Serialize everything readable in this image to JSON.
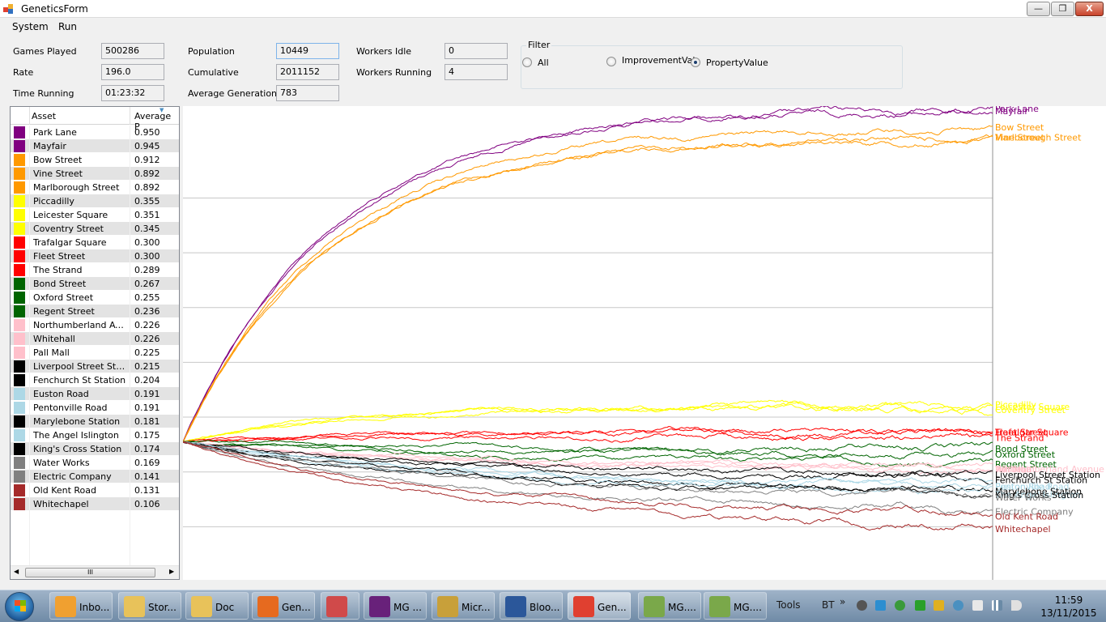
{
  "window": {
    "title": "GeneticsForm",
    "minimize": "—",
    "maximize": "❐",
    "close": "X"
  },
  "menu": {
    "items": [
      "System",
      "Run"
    ]
  },
  "stats": {
    "games_played_label": "Games Played",
    "games_played": "500286",
    "rate_label": "Rate",
    "rate": "196.0",
    "time_running_label": "Time Running",
    "time_running": "01:23:32",
    "population_label": "Population",
    "population": "10449",
    "cumulative_label": "Cumulative",
    "cumulative": "2011152",
    "average_generation_label": "Average Generation",
    "average_generation": "783",
    "workers_idle_label": "Workers Idle",
    "workers_idle": "0",
    "workers_running_label": "Workers Running",
    "workers_running": "4"
  },
  "filter": {
    "legend": "Filter",
    "options": [
      "All",
      "ImprovementVal",
      "PropertyValue"
    ],
    "selected": "PropertyValue"
  },
  "grid": {
    "columns": [
      "Asset",
      "Average P"
    ],
    "scroll_thumb": "III",
    "rows": [
      {
        "name": "Park Lane",
        "value": "0.950",
        "color": "#800080"
      },
      {
        "name": "Mayfair",
        "value": "0.945",
        "color": "#800080"
      },
      {
        "name": "Bow Street",
        "value": "0.912",
        "color": "#ff9900"
      },
      {
        "name": "Vine Street",
        "value": "0.892",
        "color": "#ff9900"
      },
      {
        "name": "Marlborough Street",
        "value": "0.892",
        "color": "#ff9900"
      },
      {
        "name": "Piccadilly",
        "value": "0.355",
        "color": "#ffff00"
      },
      {
        "name": "Leicester Square",
        "value": "0.351",
        "color": "#ffff00"
      },
      {
        "name": "Coventry Street",
        "value": "0.345",
        "color": "#ffff00"
      },
      {
        "name": "Trafalgar Square",
        "value": "0.300",
        "color": "#ff0000"
      },
      {
        "name": "Fleet Street",
        "value": "0.300",
        "color": "#ff0000"
      },
      {
        "name": "The Strand",
        "value": "0.289",
        "color": "#ff0000"
      },
      {
        "name": "Bond Street",
        "value": "0.267",
        "color": "#006400"
      },
      {
        "name": "Oxford Street",
        "value": "0.255",
        "color": "#006400"
      },
      {
        "name": "Regent Street",
        "value": "0.236",
        "color": "#006400"
      },
      {
        "name": "Northumberland Aven...",
        "value": "0.226",
        "color": "#ffc0cb"
      },
      {
        "name": "Whitehall",
        "value": "0.226",
        "color": "#ffc0cb"
      },
      {
        "name": "Pall Mall",
        "value": "0.225",
        "color": "#ffc0cb"
      },
      {
        "name": "Liverpool Street Station",
        "value": "0.215",
        "color": "#000000"
      },
      {
        "name": "Fenchurch St Station",
        "value": "0.204",
        "color": "#000000"
      },
      {
        "name": "Euston Road",
        "value": "0.191",
        "color": "#add8e6"
      },
      {
        "name": "Pentonville Road",
        "value": "0.191",
        "color": "#add8e6"
      },
      {
        "name": "Marylebone Station",
        "value": "0.181",
        "color": "#000000"
      },
      {
        "name": "The Angel Islington",
        "value": "0.175",
        "color": "#add8e6"
      },
      {
        "name": "King's Cross Station",
        "value": "0.174",
        "color": "#000000"
      },
      {
        "name": "Water Works",
        "value": "0.169",
        "color": "#808080"
      },
      {
        "name": "Electric Company",
        "value": "0.141",
        "color": "#808080"
      },
      {
        "name": "Old Kent Road",
        "value": "0.131",
        "color": "#a52a2a"
      },
      {
        "name": "Whitechapel",
        "value": "0.106",
        "color": "#a52a2a"
      }
    ]
  },
  "chart_data": {
    "type": "line",
    "start_value": 0.28,
    "series": [
      {
        "name": "Park Lane",
        "value": 0.95,
        "color": "#800080"
      },
      {
        "name": "Mayfair",
        "value": 0.945,
        "color": "#800080"
      },
      {
        "name": "Bow Street",
        "value": 0.912,
        "color": "#ff9900"
      },
      {
        "name": "Vine Street",
        "value": 0.892,
        "color": "#ff9900"
      },
      {
        "name": "Marlborough Street",
        "value": 0.892,
        "color": "#ff9900"
      },
      {
        "name": "Piccadilly",
        "value": 0.355,
        "color": "#ffff00"
      },
      {
        "name": "Leicester Square",
        "value": 0.351,
        "color": "#ffff00"
      },
      {
        "name": "Coventry Street",
        "value": 0.345,
        "color": "#ffff00"
      },
      {
        "name": "Trafalgar Square",
        "value": 0.3,
        "color": "#ff0000"
      },
      {
        "name": "Fleet Street",
        "value": 0.3,
        "color": "#ff0000"
      },
      {
        "name": "The Strand",
        "value": 0.289,
        "color": "#ff0000"
      },
      {
        "name": "Bond Street",
        "value": 0.267,
        "color": "#006400"
      },
      {
        "name": "Oxford Street",
        "value": 0.255,
        "color": "#006400"
      },
      {
        "name": "Regent Street",
        "value": 0.236,
        "color": "#006400"
      },
      {
        "name": "Northumberland Avenue",
        "value": 0.226,
        "color": "#ffc0cb"
      },
      {
        "name": "Whitehall",
        "value": 0.226,
        "color": "#ffc0cb"
      },
      {
        "name": "Pall Mall",
        "value": 0.225,
        "color": "#ffc0cb"
      },
      {
        "name": "Liverpool Street Station",
        "value": 0.215,
        "color": "#000000"
      },
      {
        "name": "Fenchurch St Station",
        "value": 0.204,
        "color": "#000000"
      },
      {
        "name": "Euston Road",
        "value": 0.191,
        "color": "#add8e6"
      },
      {
        "name": "Pentonville Road",
        "value": 0.191,
        "color": "#add8e6"
      },
      {
        "name": "Marylebone Station",
        "value": 0.181,
        "color": "#000000"
      },
      {
        "name": "The Angel Islington",
        "value": 0.175,
        "color": "#add8e6"
      },
      {
        "name": "King's Cross Station",
        "value": 0.174,
        "color": "#000000"
      },
      {
        "name": "Water Works",
        "value": 0.169,
        "color": "#808080"
      },
      {
        "name": "Electric Company",
        "value": 0.141,
        "color": "#808080"
      },
      {
        "name": "Old Kent Road",
        "value": 0.131,
        "color": "#a52a2a"
      },
      {
        "name": "Whitechapel",
        "value": 0.106,
        "color": "#a52a2a"
      }
    ],
    "ylim": [
      0,
      1.0
    ],
    "grid": true,
    "legend": "right"
  },
  "taskbar": {
    "buttons": [
      {
        "label": "Inbo...",
        "icon": "outlook-icon",
        "color": "#f0a030"
      },
      {
        "label": "Stor...",
        "icon": "folder-icon",
        "color": "#e8c25a"
      },
      {
        "label": "Doc",
        "icon": "folder-icon",
        "color": "#e8c25a"
      },
      {
        "label": "Gen...",
        "icon": "firefox-icon",
        "color": "#e66a1f"
      },
      {
        "label": "",
        "icon": "app-icon",
        "color": "#d04a4a"
      },
      {
        "label": "MG ...",
        "icon": "visual-studio-icon",
        "color": "#68217a"
      },
      {
        "label": "Micr...",
        "icon": "tools-icon",
        "color": "#c8a03a"
      },
      {
        "label": "Bloo...",
        "icon": "word-icon",
        "color": "#2b579a"
      },
      {
        "label": "Gen...",
        "icon": "genetics-form-icon",
        "color": "#e04030"
      },
      {
        "label": "MG....",
        "icon": "notepad-icon",
        "color": "#7aa84a"
      },
      {
        "label": "MG....",
        "icon": "notepad-icon",
        "color": "#7aa84a"
      }
    ],
    "tools": "Tools",
    "bt": "BT",
    "more": "»",
    "time": "11:59",
    "date": "13/11/2015"
  }
}
